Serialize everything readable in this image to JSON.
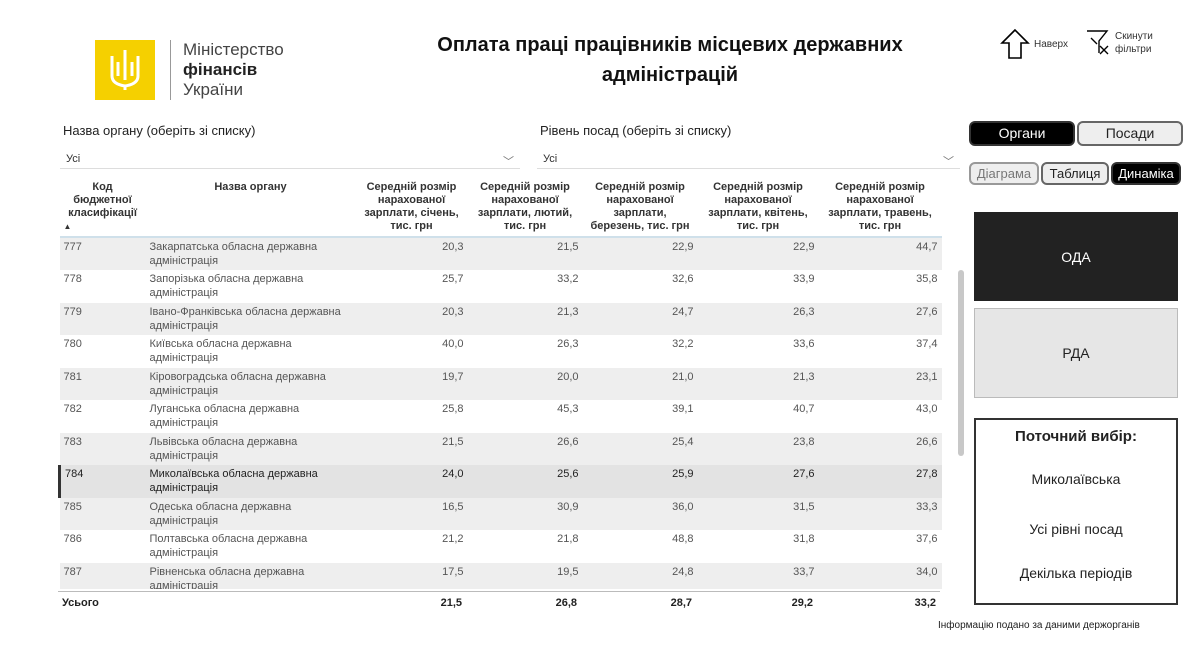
{
  "logo": {
    "line1": "Міністерство",
    "line2": "фінансів",
    "line3": "України"
  },
  "title": "Оплата праці працівників місцевих державних адміністрацій",
  "top_buttons": {
    "up": "Наверх",
    "reset": "Скинути фільтри"
  },
  "filters": {
    "organ": {
      "label": "Назва органу (оберіть зі списку)",
      "value": "Усі"
    },
    "level": {
      "label": "Рівень посад (оберіть зі списку)",
      "value": "Усі"
    }
  },
  "toggles": {
    "organs": "Органи",
    "positions": "Посади"
  },
  "views": {
    "chart": "Діаграма",
    "table": "Таблиця",
    "dynamics": "Динаміка"
  },
  "type_buttons": {
    "oda": "ОДА",
    "rda": "РДА"
  },
  "current": {
    "title": "Поточний вибір:",
    "organ": "Миколаївська",
    "level": "Усі рівні посад",
    "period": "Декілька періодів"
  },
  "footer": "Інформацію подано за даними держорганів",
  "table": {
    "headers": [
      "Код бюджетної класифікації",
      "Назва органу",
      "Середній розмір нарахованої зарплати, січень, тис. грн",
      "Середній розмір нарахованої зарплати, лютий, тис. грн",
      "Середній розмір нарахованої зарплати, березень, тис. грн",
      "Середній розмір нарахованої зарплати, квітень, тис. грн",
      "Середній розмір нарахованої зарплати, травень, тис. грн"
    ],
    "rows": [
      [
        "777",
        "Закарпатська обласна державна адміністрація",
        "20,3",
        "21,5",
        "22,9",
        "22,9",
        "44,7"
      ],
      [
        "778",
        "Запорізька обласна державна адміністрація",
        "25,7",
        "33,2",
        "32,6",
        "33,9",
        "35,8"
      ],
      [
        "779",
        "Івано-Франківська обласна державна адміністрація",
        "20,3",
        "21,3",
        "24,7",
        "26,3",
        "27,6"
      ],
      [
        "780",
        "Київська обласна державна адміністрація",
        "40,0",
        "26,3",
        "32,2",
        "33,6",
        "37,4"
      ],
      [
        "781",
        "Кіровоградська обласна державна адміністрація",
        "19,7",
        "20,0",
        "21,0",
        "21,3",
        "23,1"
      ],
      [
        "782",
        "Луганська обласна державна адміністрація",
        "25,8",
        "45,3",
        "39,1",
        "40,7",
        "43,0"
      ],
      [
        "783",
        "Львівська обласна державна адміністрація",
        "21,5",
        "26,6",
        "25,4",
        "23,8",
        "26,6"
      ],
      [
        "784",
        "Миколаївська обласна державна адміністрація",
        "24,0",
        "25,6",
        "25,9",
        "27,6",
        "27,8"
      ],
      [
        "785",
        "Одеська обласна державна адміністрація",
        "16,5",
        "30,9",
        "36,0",
        "31,5",
        "33,3"
      ],
      [
        "786",
        "Полтавська обласна державна адміністрація",
        "21,2",
        "21,8",
        "48,8",
        "31,8",
        "37,6"
      ],
      [
        "787",
        "Рівненська обласна державна адміністрація",
        "17,5",
        "19,5",
        "24,8",
        "33,7",
        "34,0"
      ]
    ],
    "selected_row": "784",
    "totals": [
      "Усього",
      "",
      "21,5",
      "26,8",
      "28,7",
      "29,2",
      "33,2"
    ]
  }
}
